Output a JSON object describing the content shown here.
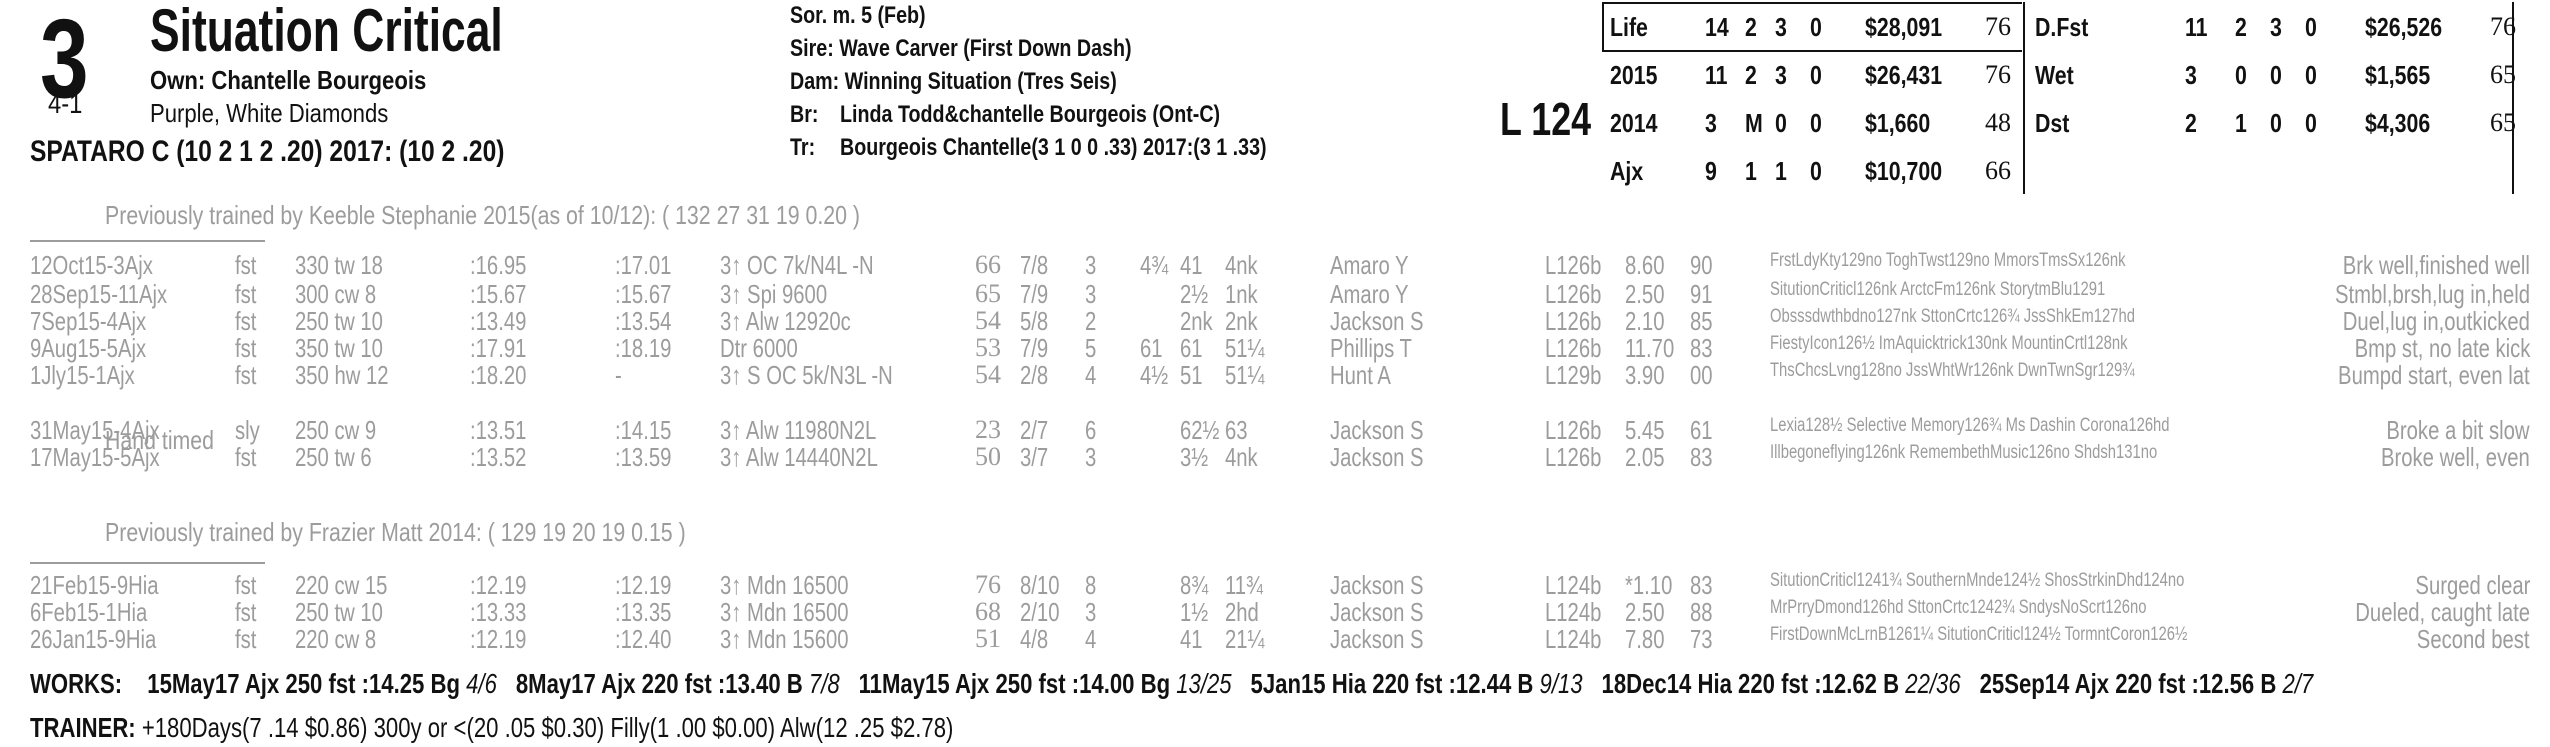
{
  "horse": {
    "program_number": "3",
    "morning_line": "4-1",
    "name": "Situation Critical",
    "owner": "Own: Chantelle Bourgeois",
    "silks": "Purple, White Diamonds",
    "jockey": "SPATARO C (10 2 1 2 .20) 2017: (10 2 .20)"
  },
  "pedigree": {
    "sex_age": "Sor. m. 5 (Feb)",
    "sire": "Sire: Wave Carver (First Down Dash)",
    "dam": "Dam: Winning Situation (Tres Seis)",
    "breeder_label": "Br:",
    "breeder": "Linda Todd&chantelle Bourgeois (Ont-C)",
    "trainer_label": "Tr:",
    "trainer": "Bourgeois Chantelle(3 1 0 0 .33)  2017:(3 1 .33)"
  },
  "weight": "L 124",
  "records_left": [
    {
      "label": "Life",
      "starts": "14",
      "w": "2",
      "p": "3",
      "s": "0",
      "earn": "$28,091",
      "speed": "76"
    },
    {
      "label": "2015",
      "starts": "11",
      "w": "2",
      "p": "3",
      "s": "0",
      "earn": "$26,431",
      "speed": "76"
    },
    {
      "label": "2014",
      "starts": "3",
      "w": "M",
      "p": "0",
      "s": "0",
      "earn": "$1,660",
      "speed": "48"
    },
    {
      "label": "Ajx",
      "starts": "9",
      "w": "1",
      "p": "1",
      "s": "0",
      "earn": "$10,700",
      "speed": "66"
    }
  ],
  "records_right": [
    {
      "label": "D.Fst",
      "starts": "11",
      "w": "2",
      "p": "3",
      "s": "0",
      "earn": "$26,526",
      "speed": "76"
    },
    {
      "label": "Wet",
      "starts": "3",
      "w": "0",
      "p": "0",
      "s": "0",
      "earn": "$1,565",
      "speed": "65"
    },
    {
      "label": "Dst",
      "starts": "2",
      "w": "1",
      "p": "0",
      "s": "0",
      "earn": "$4,306",
      "speed": "65"
    }
  ],
  "notes": {
    "prev1": "Previously trained by Keeble Stephanie 2015(as of 10/12): ( 132 27 31 19 0.20 )",
    "hand_timed": "Hand timed",
    "prev2": "Previously trained by Frazier Matt 2014: ( 129 19 20 19 0.15 )"
  },
  "races": [
    {
      "date": "12Oct15-3Ajx",
      "cond": "fst",
      "dist": "330 tw 18",
      "f1": ":16.95",
      "f2": ":17.01",
      "cls": "3↑ OC 7k/N4L -N",
      "spd": "66",
      "pp": "7/8",
      "st": "3",
      "c1": "4¾",
      "c2": "41",
      "fin": "4nk",
      "jock": "Amaro Y",
      "wt": "L126b",
      "odds": "8.60",
      "sp": "90",
      "comp": "FrstLdyKty129no ToghTwst129no MmorsTmsSx126nk",
      "comment": "Brk well,finished well"
    },
    {
      "date": "28Sep15-11Ajx",
      "cond": "fst",
      "dist": "300 cw 8",
      "f1": ":15.67",
      "f2": ":15.67",
      "cls": "3↑ Spi 9600",
      "spd": "65",
      "pp": "7/9",
      "st": "3",
      "c1": "",
      "c2": "2½",
      "fin": "1nk",
      "jock": "Amaro Y",
      "wt": "L126b",
      "odds": "2.50",
      "sp": "91",
      "comp": "SitutionCriticl126nk ArctcFm126nk StorytmBlu1291",
      "comment": "Stmbl,brsh,lug in,held"
    },
    {
      "date": "7Sep15-4Ajx",
      "cond": "fst",
      "dist": "250 tw 10",
      "f1": ":13.49",
      "f2": ":13.54",
      "cls": "3↑ Alw 12920c",
      "spd": "54",
      "pp": "5/8",
      "st": "2",
      "c1": "",
      "c2": "2nk",
      "fin": "2nk",
      "jock": "Jackson S",
      "wt": "L126b",
      "odds": "2.10",
      "sp": "85",
      "comp": "Obsssdwthbdno127nk SttonCrtc126¾ JssShkEm127hd",
      "comment": "Duel,lug in,outkicked"
    },
    {
      "date": "9Aug15-5Ajx",
      "cond": "fst",
      "dist": "350 tw 10",
      "f1": ":17.91",
      "f2": ":18.19",
      "cls": "Dtr 6000",
      "spd": "53",
      "pp": "7/9",
      "st": "5",
      "c1": "61",
      "c2": "61",
      "fin": "51¼",
      "jock": "Phillips T",
      "wt": "L126b",
      "odds": "11.70",
      "sp": "83",
      "comp": "FiestyIcon126½ ImAquicktrick130nk MountinCrtl128nk",
      "comment": "Bmp st, no late kick"
    },
    {
      "date": "1Jly15-1Ajx",
      "cond": "fst",
      "dist": "350 hw 12",
      "f1": ":18.20",
      "f2": "-",
      "cls": "3↑ S OC 5k/N3L -N",
      "spd": "54",
      "pp": "2/8",
      "st": "4",
      "c1": "4½",
      "c2": "51",
      "fin": "51¼",
      "jock": "Hunt A",
      "wt": "L129b",
      "odds": "3.90",
      "sp": "00",
      "comp": "ThsChcsLvng128no JssWhtWr126nk DwnTwnSgr129¾",
      "comment": "Bumpd start, even lat"
    },
    {
      "date": "31May15-4Ajx",
      "cond": "sly",
      "dist": "250 cw 9",
      "f1": ":13.51",
      "f2": ":14.15",
      "cls": "3↑ Alw 11980N2L",
      "spd": "23",
      "pp": "2/7",
      "st": "6",
      "c1": "",
      "c2": "62½",
      "fin": "63",
      "jock": "Jackson S",
      "wt": "L126b",
      "odds": "5.45",
      "sp": "61",
      "comp": "Lexia128½ Selective Memory126¾ Ms Dashin Corona126hd",
      "comment": "Broke a bit slow"
    },
    {
      "date": "17May15-5Ajx",
      "cond": "fst",
      "dist": "250 tw 6",
      "f1": ":13.52",
      "f2": ":13.59",
      "cls": "3↑ Alw 14440N2L",
      "spd": "50",
      "pp": "3/7",
      "st": "3",
      "c1": "",
      "c2": "3½",
      "fin": "4nk",
      "jock": "Jackson S",
      "wt": "L126b",
      "odds": "2.05",
      "sp": "83",
      "comp": "Illbegoneflying126nk RemembethMusic126no Shdsh131no",
      "comment": "Broke well, even"
    },
    {
      "date": "21Feb15-9Hia",
      "cond": "fst",
      "dist": "220 cw 15",
      "f1": ":12.19",
      "f2": ":12.19",
      "cls": "3↑ Mdn 16500",
      "spd": "76",
      "pp": "8/10",
      "st": "8",
      "c1": "",
      "c2": "8¾",
      "fin": "11¾",
      "jock": "Jackson S",
      "wt": "L124b",
      "odds": "*1.10",
      "sp": "83",
      "comp": "SitutionCriticl1241¾ SouthernMnde124½ ShosStrkinDhd124no",
      "comment": "Surged clear"
    },
    {
      "date": "6Feb15-1Hia",
      "cond": "fst",
      "dist": "250 tw 10",
      "f1": ":13.33",
      "f2": ":13.35",
      "cls": "3↑ Mdn 16500",
      "spd": "68",
      "pp": "2/10",
      "st": "3",
      "c1": "",
      "c2": "1½",
      "fin": "2hd",
      "jock": "Jackson S",
      "wt": "L124b",
      "odds": "2.50",
      "sp": "88",
      "comp": "MrPrryDmond126hd SttonCrtc1242¾ SndysNoScrt126no",
      "comment": "Dueled, caught late"
    },
    {
      "date": "26Jan15-9Hia",
      "cond": "fst",
      "dist": "220 cw 8",
      "f1": ":12.19",
      "f2": ":12.40",
      "cls": "3↑ Mdn 15600",
      "spd": "51",
      "pp": "4/8",
      "st": "4",
      "c1": "",
      "c2": "41",
      "fin": "21¼",
      "jock": "Jackson S",
      "wt": "L124b",
      "odds": "7.80",
      "sp": "73",
      "comp": "FirstDownMcLrnB1261¼ SitutionCriticl124½ TormntCoron126½",
      "comment": "Second best"
    }
  ],
  "works": {
    "label": "WORKS:",
    "items": [
      {
        "text": "15May17 Ajx 250 fst :14.25 Bg",
        "rank": "4/6"
      },
      {
        "text": "8May17 Ajx 220 fst :13.40 B",
        "rank": "7/8"
      },
      {
        "text": "11May15 Ajx 250 fst :14.00 Bg",
        "rank": "13/25"
      },
      {
        "text": "5Jan15 Hia 220 fst :12.44 B",
        "rank": "9/13"
      },
      {
        "text": "18Dec14 Hia 220 fst :12.62 B",
        "rank": "22/36"
      },
      {
        "text": "25Sep14 Ajx 220 fst :12.56 B",
        "rank": "2/7"
      }
    ]
  },
  "trainer_stats": {
    "label": "TRAINER:",
    "text": "+180Days(7 .14 $0.86) 300y or <(20 .05 $0.30) Filly(1 .00 $0.00) Alw(12 .25 $2.78)"
  }
}
